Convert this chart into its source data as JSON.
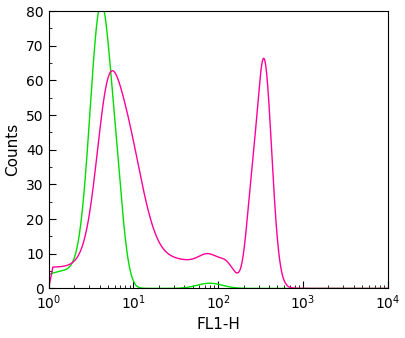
{
  "title": "",
  "xlabel": "FL1-H",
  "ylabel": "Counts",
  "xlim": [
    1,
    10000
  ],
  "ylim": [
    0,
    80
  ],
  "yticks": [
    0,
    10,
    20,
    30,
    40,
    50,
    60,
    70,
    80
  ],
  "green_color": "#00dd00",
  "pink_color": "#ff0099",
  "background_color": "#ffffff",
  "line_width": 1.0
}
